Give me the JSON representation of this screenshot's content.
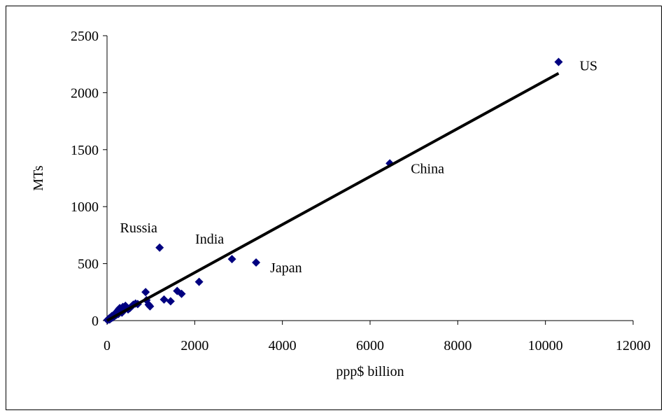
{
  "chart_data": {
    "type": "scatter",
    "xlabel": "ppp$ billion",
    "ylabel": "MTs",
    "xlim": [
      0,
      12000
    ],
    "ylim": [
      0,
      2500
    ],
    "x_ticks": [
      0,
      2000,
      4000,
      6000,
      8000,
      10000,
      12000
    ],
    "y_ticks": [
      0,
      500,
      1000,
      1500,
      2000,
      2500
    ],
    "marker": "diamond",
    "marker_color": "#000080",
    "trendline_color": "#000000",
    "grid": false,
    "series": [
      {
        "points": [
          [
            10,
            5
          ],
          [
            20,
            8
          ],
          [
            30,
            12
          ],
          [
            40,
            15
          ],
          [
            50,
            20
          ],
          [
            60,
            10
          ],
          [
            70,
            25
          ],
          [
            80,
            18
          ],
          [
            90,
            30
          ],
          [
            100,
            22
          ],
          [
            110,
            40
          ],
          [
            120,
            35
          ],
          [
            130,
            28
          ],
          [
            140,
            45
          ],
          [
            150,
            50
          ],
          [
            160,
            38
          ],
          [
            170,
            55
          ],
          [
            180,
            42
          ],
          [
            190,
            60
          ],
          [
            200,
            48
          ],
          [
            210,
            70
          ],
          [
            220,
            52
          ],
          [
            230,
            80
          ],
          [
            240,
            65
          ],
          [
            250,
            90
          ],
          [
            260,
            58
          ],
          [
            270,
            100
          ],
          [
            280,
            75
          ],
          [
            290,
            110
          ],
          [
            300,
            85
          ],
          [
            320,
            95
          ],
          [
            340,
            70
          ],
          [
            360,
            120
          ],
          [
            380,
            88
          ],
          [
            400,
            105
          ],
          [
            420,
            130
          ],
          [
            450,
            115
          ],
          [
            480,
            98
          ],
          [
            520,
            110
          ],
          [
            560,
            125
          ],
          [
            600,
            140
          ],
          [
            650,
            150
          ],
          [
            700,
            145
          ],
          [
            880,
            250
          ],
          [
            900,
            180
          ],
          [
            950,
            140
          ],
          [
            980,
            125
          ],
          [
            1200,
            640
          ],
          [
            1300,
            185
          ],
          [
            1450,
            170
          ],
          [
            1600,
            260
          ],
          [
            1700,
            235
          ],
          [
            2100,
            340
          ],
          [
            2850,
            540
          ],
          [
            3400,
            510
          ],
          [
            6450,
            1380
          ],
          [
            10300,
            2270
          ]
        ]
      }
    ],
    "trendline": {
      "x": [
        0,
        10300
      ],
      "y": [
        0,
        2170
      ]
    },
    "annotations": [
      {
        "text": "US",
        "x": 10300,
        "y": 2270
      },
      {
        "text": "China",
        "x": 6450,
        "y": 1380
      },
      {
        "text": "Russia",
        "x": 1200,
        "y": 640
      },
      {
        "text": "India",
        "x": 2850,
        "y": 540
      },
      {
        "text": "Japan",
        "x": 3400,
        "y": 510
      }
    ]
  }
}
